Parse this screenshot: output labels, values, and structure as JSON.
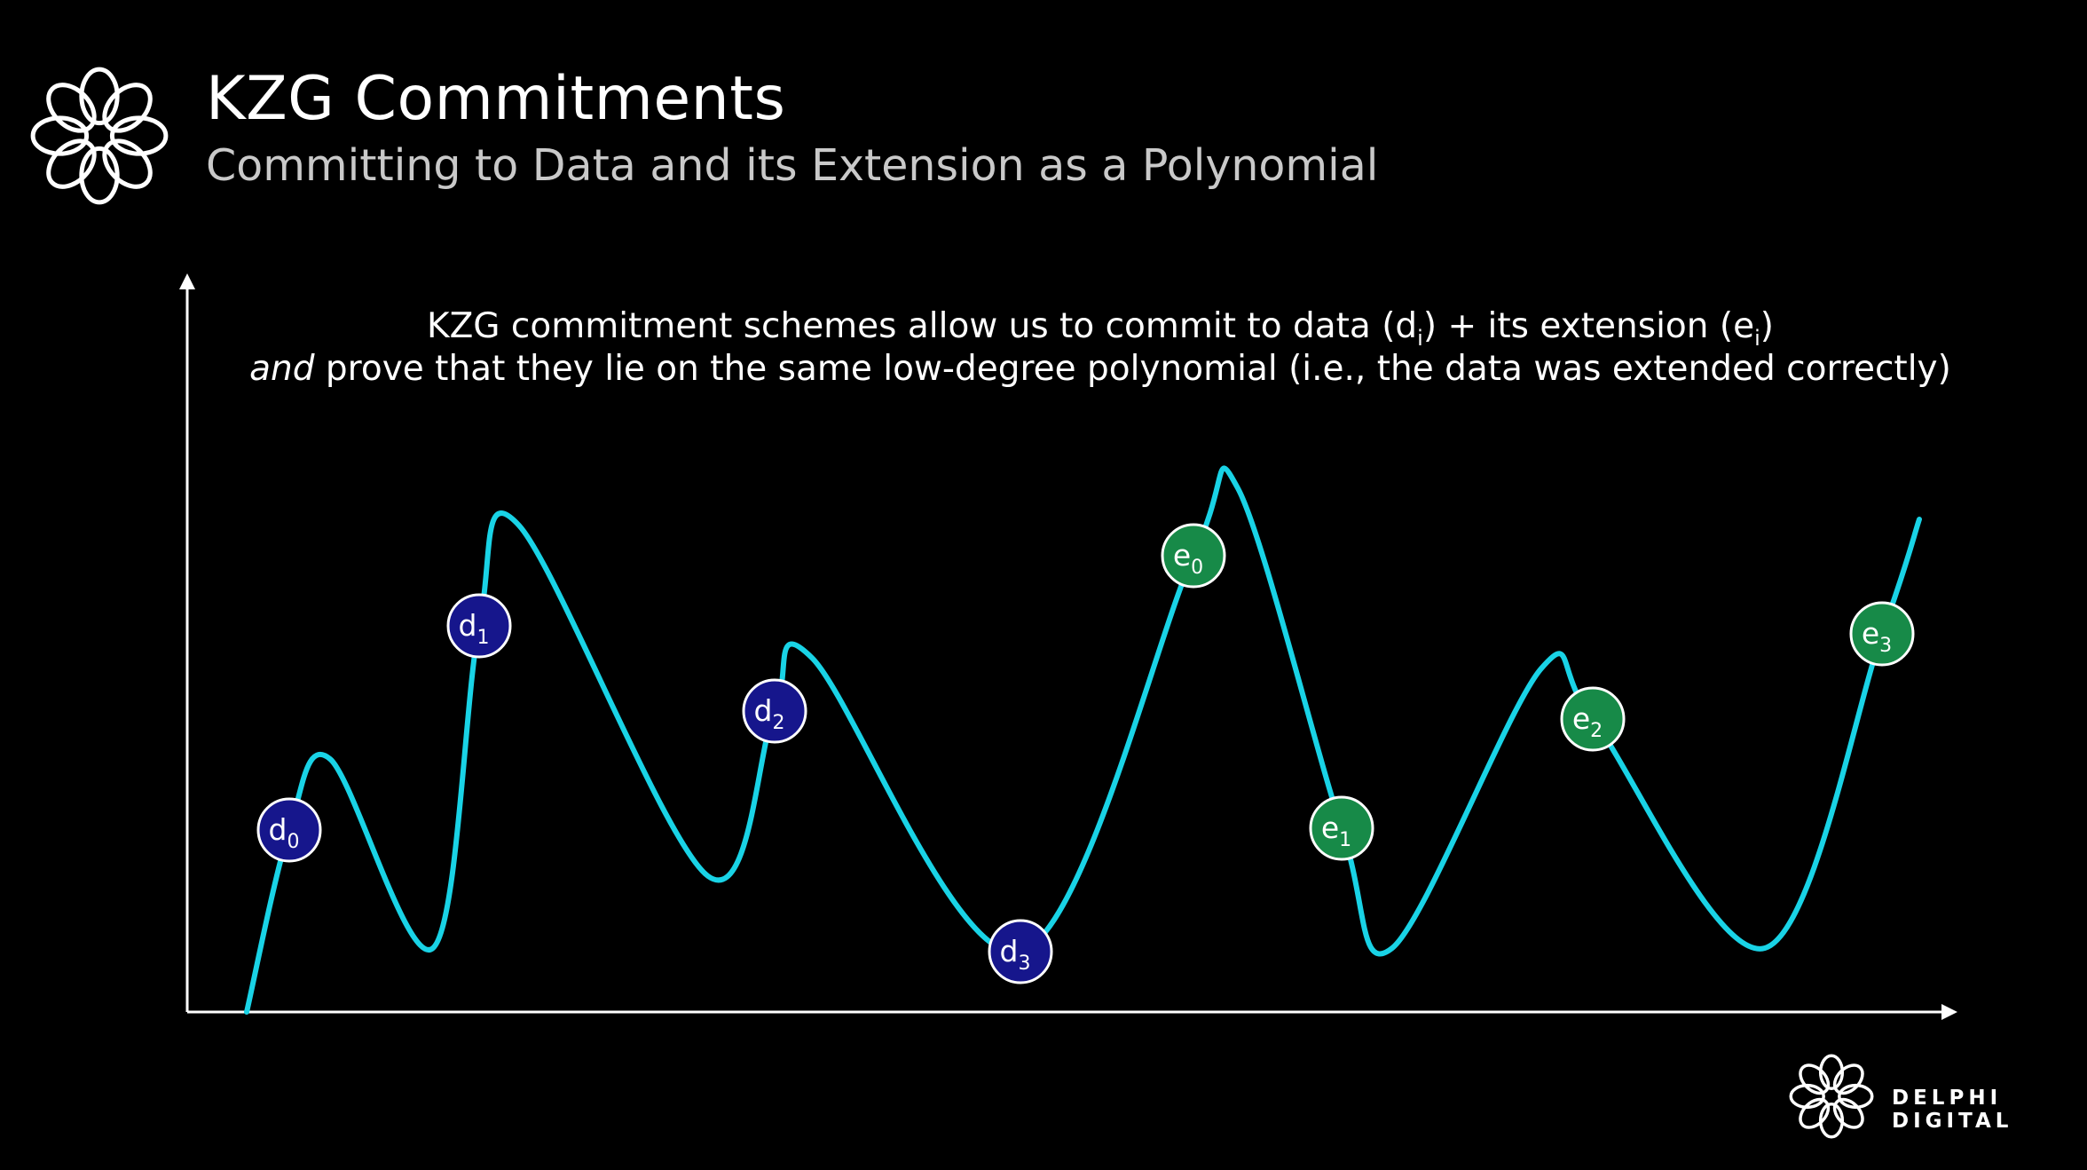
{
  "header": {
    "title": "KZG Commitments",
    "subtitle": "Committing to Data and its Extension as a Polynomial"
  },
  "description": {
    "line1_prefix": "KZG commitment schemes allow us to commit to data (d",
    "line1_sub1": "i",
    "line1_mid": ") + its extension (e",
    "line1_sub2": "i",
    "line1_suffix": ")",
    "line2_emphasis": "and",
    "line2_rest": " prove that they lie on the same low-degree polynomial (i.e., the data was extended correctly)"
  },
  "diagram": {
    "curve_color": "#19d3e6",
    "data_color": "#16168c",
    "extension_color": "#178a48",
    "nodes": [
      {
        "base": "d",
        "sub": "0",
        "kind": "data"
      },
      {
        "base": "d",
        "sub": "1",
        "kind": "data"
      },
      {
        "base": "d",
        "sub": "2",
        "kind": "data"
      },
      {
        "base": "d",
        "sub": "3",
        "kind": "data"
      },
      {
        "base": "e",
        "sub": "0",
        "kind": "extension"
      },
      {
        "base": "e",
        "sub": "1",
        "kind": "extension"
      },
      {
        "base": "e",
        "sub": "2",
        "kind": "extension"
      },
      {
        "base": "e",
        "sub": "3",
        "kind": "extension"
      }
    ]
  },
  "footer": {
    "brand": "DELPHI DIGITAL"
  }
}
